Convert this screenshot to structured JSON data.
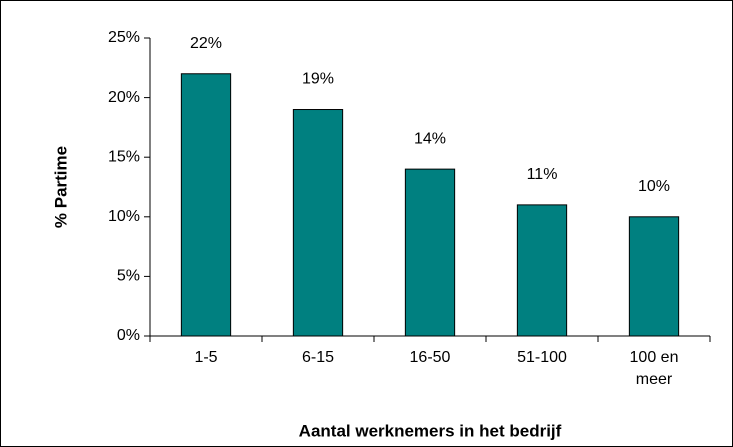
{
  "chart_data": {
    "type": "bar",
    "categories": [
      "1-5",
      "6-15",
      "16-50",
      "51-100",
      "100 en meer"
    ],
    "values": [
      22,
      19,
      14,
      11,
      10
    ],
    "value_labels": [
      "22%",
      "19%",
      "14%",
      "11%",
      "10%"
    ],
    "color": "#008080",
    "xlabel": "Aantal werknemers in het bedrijf",
    "ylabel": "% Partime",
    "ylim": [
      0,
      25
    ],
    "yticks": [
      {
        "value": 0,
        "label": "0%"
      },
      {
        "value": 5,
        "label": "5%"
      },
      {
        "value": 10,
        "label": "10%"
      },
      {
        "value": 15,
        "label": "15%"
      },
      {
        "value": 20,
        "label": "20%"
      },
      {
        "value": 25,
        "label": "25%"
      }
    ],
    "grid": false
  }
}
